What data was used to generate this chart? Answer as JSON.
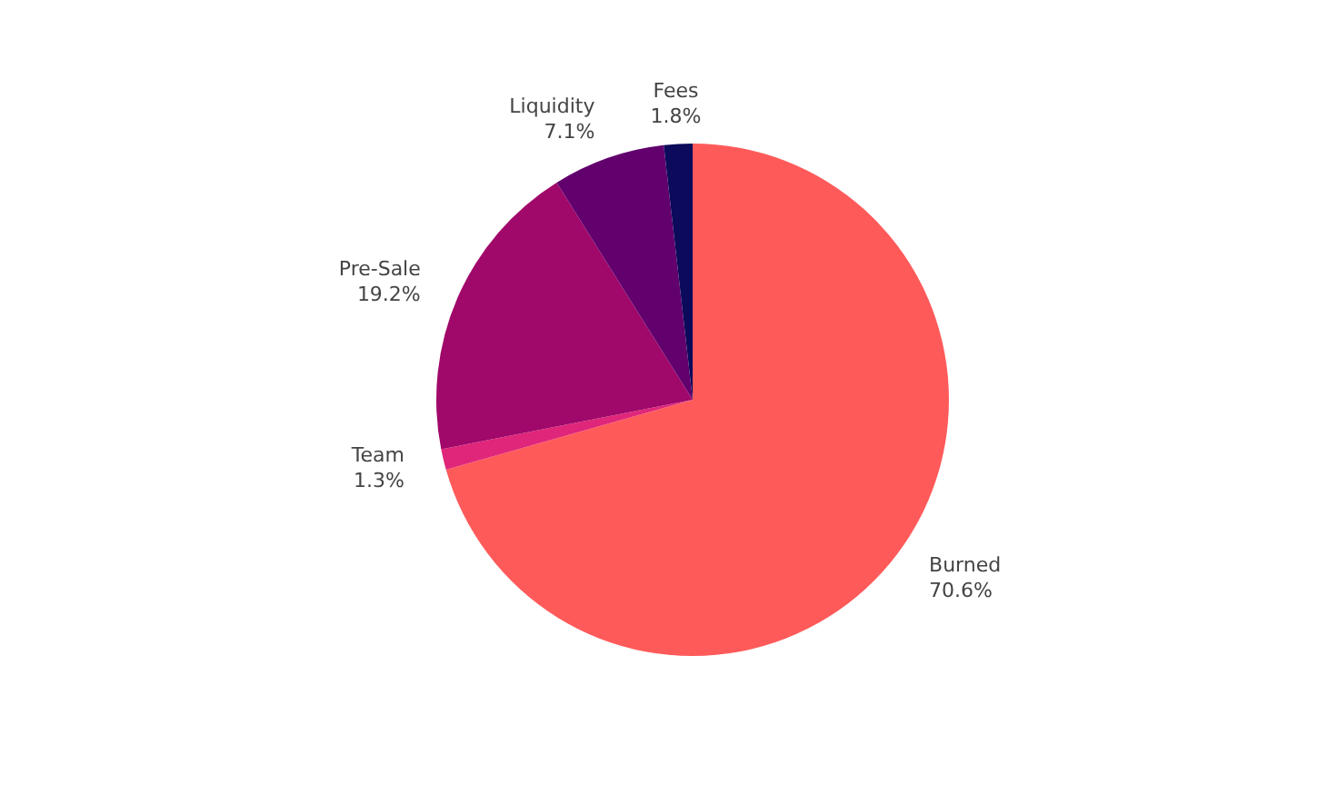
{
  "chart_data": {
    "type": "pie",
    "categories": [
      "Burned",
      "Team",
      "Pre-Sale",
      "Liquidity",
      "Fees"
    ],
    "values": [
      70.6,
      1.3,
      19.2,
      7.1,
      1.8
    ],
    "colors": [
      "#ff5a5a",
      "#e0267a",
      "#a0086a",
      "#62006e",
      "#0c0a5a"
    ],
    "value_labels": [
      "70.6%",
      "1.3%",
      "19.2%",
      "7.1%",
      "1.8%"
    ]
  }
}
